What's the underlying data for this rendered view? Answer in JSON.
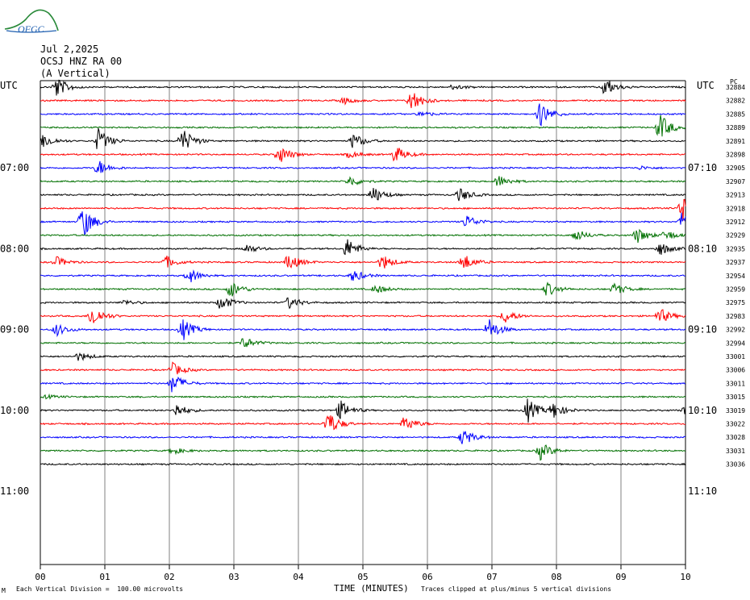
{
  "header": {
    "date": "Jul 2,2025",
    "station": "OCSJ HNZ RA 00",
    "component": "(A Vertical)",
    "left_tz": "UTC",
    "right_tz": "UTC",
    "logo_text": "OFGC",
    "right_column_tag": "PC"
  },
  "footer": {
    "scale": "Each Vertical Division =  100.00 microvolts",
    "xlabel": "TIME (MINUTES)",
    "clip_note": "Traces clipped at plus/minus 5 vertical divisions",
    "corner_mark": "M"
  },
  "colors": {
    "trace_cycle": [
      "#000000",
      "#ff0000",
      "#0000ff",
      "#007000"
    ],
    "grid": "#808080"
  },
  "chart_data": {
    "type": "line",
    "xlabel": "TIME (MINUTES)",
    "xlim": [
      0,
      10
    ],
    "x_ticks": [
      "00",
      "01",
      "02",
      "03",
      "04",
      "05",
      "06",
      "07",
      "08",
      "09",
      "10"
    ],
    "left_time_labels": [
      "07:00",
      "08:00",
      "09:00",
      "10:00",
      "11:00"
    ],
    "right_time_labels": [
      "07:10",
      "08:10",
      "09:10",
      "10:10",
      "11:10"
    ],
    "trace_ids": [
      "32884",
      "32882",
      "32885",
      "32889",
      "32891",
      "32898",
      "32905",
      "32907",
      "32913",
      "32918",
      "32912",
      "32929",
      "32935",
      "32937",
      "32954",
      "32959",
      "32975",
      "32983",
      "32992",
      "32994",
      "33001",
      "33006",
      "33011",
      "33015",
      "33019",
      "33022",
      "33028",
      "33031",
      "33036"
    ],
    "trace_count": 29,
    "events": [
      [
        [
          0.25,
          1.2
        ],
        [
          8.75,
          1.1
        ],
        [
          6.4,
          0.3
        ]
      ],
      [
        [
          5.75,
          1.3
        ],
        [
          4.7,
          0.4
        ]
      ],
      [
        [
          7.75,
          1.4
        ],
        [
          5.9,
          0.3
        ]
      ],
      [
        [
          9.6,
          1.6
        ]
      ],
      [
        [
          0.05,
          0.8
        ],
        [
          0.9,
          1.4
        ],
        [
          2.2,
          1.5
        ],
        [
          4.85,
          0.9
        ]
      ],
      [
        [
          3.7,
          1.1
        ],
        [
          5.5,
          1.0
        ],
        [
          4.8,
          0.4
        ]
      ],
      [
        [
          0.9,
          0.9
        ],
        [
          9.3,
          0.2
        ]
      ],
      [
        [
          4.8,
          0.6
        ],
        [
          7.1,
          0.7
        ]
      ],
      [
        [
          5.15,
          1.0
        ],
        [
          6.5,
          0.8
        ]
      ],
      [
        [
          9.95,
          1.8
        ]
      ],
      [
        [
          0.65,
          2.0
        ],
        [
          6.6,
          0.8
        ],
        [
          9.95,
          1.2
        ]
      ],
      [
        [
          8.3,
          0.7
        ],
        [
          9.25,
          0.9
        ],
        [
          9.7,
          0.6
        ]
      ],
      [
        [
          4.75,
          1.2
        ],
        [
          3.2,
          0.5
        ],
        [
          9.6,
          0.8
        ]
      ],
      [
        [
          0.25,
          0.6
        ],
        [
          1.95,
          0.7
        ],
        [
          3.85,
          1.0
        ],
        [
          5.3,
          0.9
        ],
        [
          6.55,
          1.0
        ]
      ],
      [
        [
          2.3,
          0.9
        ],
        [
          4.85,
          0.7
        ]
      ],
      [
        [
          2.95,
          1.0
        ],
        [
          7.85,
          0.8
        ],
        [
          8.9,
          0.7
        ],
        [
          5.2,
          0.5
        ]
      ],
      [
        [
          2.8,
          0.9
        ],
        [
          3.85,
          0.7
        ],
        [
          1.3,
          0.3
        ]
      ],
      [
        [
          0.8,
          1.3
        ],
        [
          7.2,
          0.8
        ],
        [
          9.6,
          0.9
        ]
      ],
      [
        [
          0.25,
          0.7
        ],
        [
          2.2,
          1.3
        ],
        [
          6.95,
          1.3
        ]
      ],
      [
        [
          3.15,
          0.7
        ]
      ],
      [
        [
          0.6,
          0.5
        ]
      ],
      [
        [
          2.05,
          0.8
        ]
      ],
      [
        [
          2.05,
          1.2
        ]
      ],
      [
        [
          0.1,
          0.2
        ]
      ],
      [
        [
          2.1,
          0.8
        ],
        [
          4.65,
          1.1
        ],
        [
          7.55,
          1.4
        ],
        [
          7.95,
          0.9
        ],
        [
          10.0,
          0.6
        ]
      ],
      [
        [
          4.45,
          1.5
        ],
        [
          5.65,
          0.9
        ]
      ],
      [
        [
          6.55,
          1.0
        ]
      ],
      [
        [
          2.05,
          0.4
        ],
        [
          7.75,
          1.0
        ]
      ],
      []
    ]
  }
}
